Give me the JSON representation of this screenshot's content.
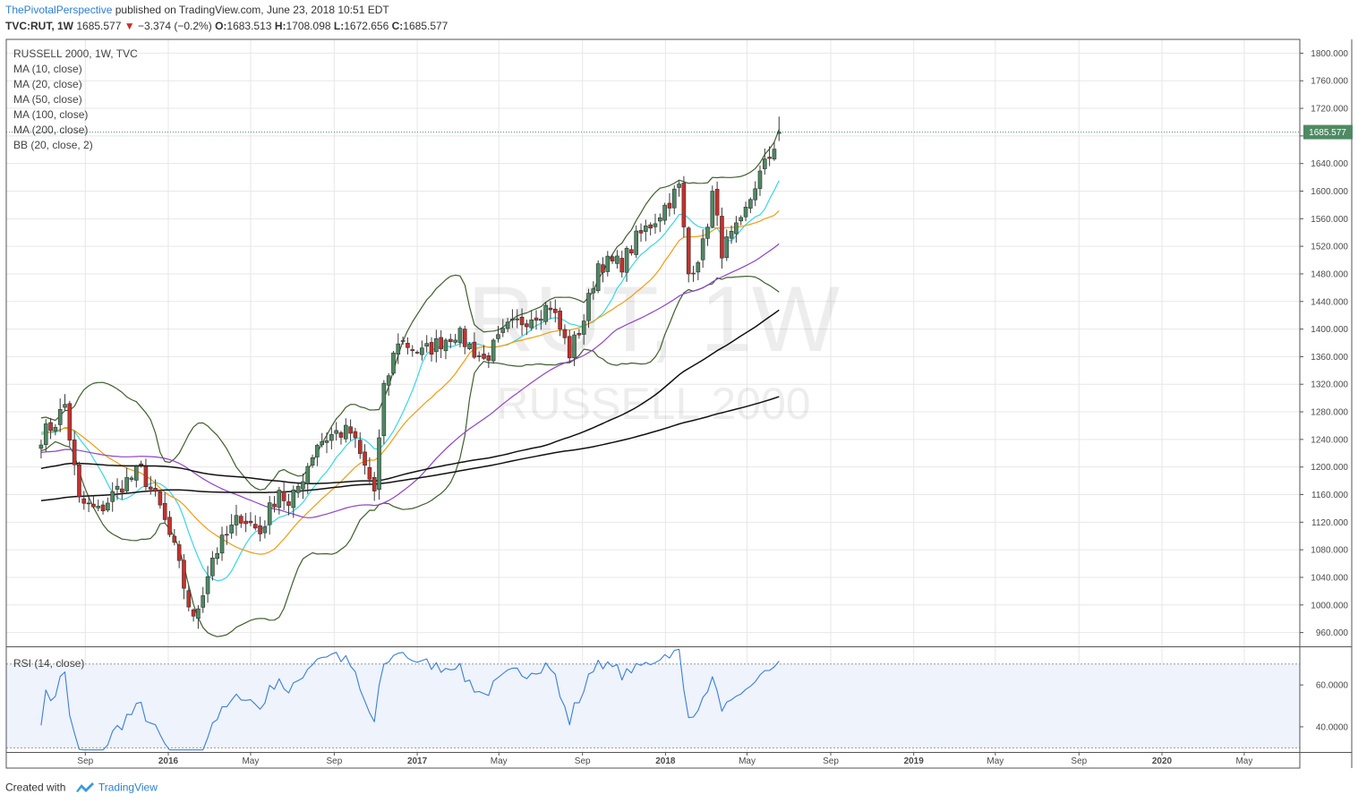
{
  "header": {
    "author": "ThePivotalPerspective",
    "published_text": "published on TradingView.com, June 23, 2018 10:51 EDT",
    "symbol": "TVC:RUT, 1W",
    "last": "1685.577",
    "change": "−3.374 (−0.2%)",
    "o_label": "O:",
    "o": "1683.513",
    "h_label": "H:",
    "h": "1708.098",
    "l_label": "L:",
    "l": "1672.656",
    "c_label": "C:",
    "c": "1685.577"
  },
  "watermark": {
    "big": "RUT, 1W",
    "small": "RUSSELL 2000"
  },
  "legend": [
    "RUSSELL 2000, 1W, TVC",
    "MA (10, close)",
    "MA (20, close)",
    "MA (50, close)",
    "MA (100, close)",
    "MA (200, close)",
    "BB (20, close, 2)"
  ],
  "rsi_label": "RSI (14, close)",
  "last_price_badge": "1685.577",
  "footer": {
    "created_with": "Created with",
    "brand": "TradingView"
  },
  "colors": {
    "up": "#4e8a63",
    "down": "#c7312c",
    "ma10": "#39d6e6",
    "ma20": "#f39c12",
    "ma50": "#8e44c6",
    "ma100": "#111111",
    "ma200": "#111111",
    "bb": "#3f5f2d",
    "rsi": "#3a7fd5",
    "rsi_band": "#eef3fc",
    "grid": "#e7e7e7",
    "badge": "#4e8a63"
  },
  "chart_data": [
    {
      "type": "candlestick",
      "title": "RUSSELL 2000, 1W, TVC",
      "x_tick_labels": [
        "Sep",
        "2016",
        "May",
        "Sep",
        "2017",
        "May",
        "Sep",
        "2018",
        "May",
        "Sep",
        "2019",
        "May",
        "Sep",
        "2020",
        "May"
      ],
      "y_tick_labels": [
        "960.000",
        "1000.000",
        "1040.000",
        "1080.000",
        "1120.000",
        "1160.000",
        "1200.000",
        "1240.000",
        "1280.000",
        "1320.000",
        "1360.000",
        "1400.000",
        "1440.000",
        "1480.000",
        "1520.000",
        "1560.000",
        "1600.000",
        "1640.000",
        "1680.000",
        "1720.000",
        "1760.000",
        "1800.000"
      ],
      "ylim": [
        940,
        1820
      ],
      "close_anchors": [
        {
          "date": "2015-06-28",
          "value": 1245
        },
        {
          "date": "2015-07-19",
          "value": 1265
        },
        {
          "date": "2015-08-02",
          "value": 1290
        },
        {
          "date": "2015-08-23",
          "value": 1150
        },
        {
          "date": "2015-09-20",
          "value": 1135
        },
        {
          "date": "2015-10-25",
          "value": 1175
        },
        {
          "date": "2015-11-22",
          "value": 1195
        },
        {
          "date": "2015-12-20",
          "value": 1140
        },
        {
          "date": "2016-01-10",
          "value": 1080
        },
        {
          "date": "2016-02-07",
          "value": 975
        },
        {
          "date": "2016-03-06",
          "value": 1070
        },
        {
          "date": "2016-04-17",
          "value": 1130
        },
        {
          "date": "2016-05-15",
          "value": 1105
        },
        {
          "date": "2016-06-12",
          "value": 1170
        },
        {
          "date": "2016-06-26",
          "value": 1140
        },
        {
          "date": "2016-08-07",
          "value": 1235
        },
        {
          "date": "2016-09-04",
          "value": 1250
        },
        {
          "date": "2016-09-25",
          "value": 1250
        },
        {
          "date": "2016-10-30",
          "value": 1165
        },
        {
          "date": "2016-11-13",
          "value": 1310
        },
        {
          "date": "2016-12-04",
          "value": 1385
        },
        {
          "date": "2017-01-08",
          "value": 1365
        },
        {
          "date": "2017-02-26",
          "value": 1395
        },
        {
          "date": "2017-04-09",
          "value": 1355
        },
        {
          "date": "2017-05-14",
          "value": 1400
        },
        {
          "date": "2017-06-18",
          "value": 1420
        },
        {
          "date": "2017-07-16",
          "value": 1435
        },
        {
          "date": "2017-08-13",
          "value": 1365
        },
        {
          "date": "2017-09-03",
          "value": 1415
        },
        {
          "date": "2017-09-24",
          "value": 1495
        },
        {
          "date": "2017-10-29",
          "value": 1495
        },
        {
          "date": "2017-11-19",
          "value": 1530
        },
        {
          "date": "2017-12-17",
          "value": 1560
        },
        {
          "date": "2018-01-21",
          "value": 1605
        },
        {
          "date": "2018-02-04",
          "value": 1480
        },
        {
          "date": "2018-02-25",
          "value": 1520
        },
        {
          "date": "2018-03-11",
          "value": 1595
        },
        {
          "date": "2018-03-25",
          "value": 1515
        },
        {
          "date": "2018-04-22",
          "value": 1550
        },
        {
          "date": "2018-05-13",
          "value": 1610
        },
        {
          "date": "2018-06-03",
          "value": 1650
        },
        {
          "date": "2018-06-17",
          "value": 1685.577
        }
      ],
      "moving_averages": [
        {
          "name": "MA (10, close)",
          "period": 10
        },
        {
          "name": "MA (20, close)",
          "period": 20
        },
        {
          "name": "MA (50, close)",
          "period": 50
        },
        {
          "name": "MA (100, close)",
          "period": 100
        },
        {
          "name": "MA (200, close)",
          "period": 200
        }
      ],
      "bollinger": {
        "name": "BB (20, close, 2)",
        "period": 20,
        "mult": 2
      },
      "last_close": 1685.577
    },
    {
      "type": "line",
      "title": "RSI (14, close)",
      "y_tick_labels": [
        "40.0000",
        "60.0000"
      ],
      "band": [
        30,
        70
      ],
      "ylim": [
        28,
        78
      ],
      "period": 14
    }
  ]
}
